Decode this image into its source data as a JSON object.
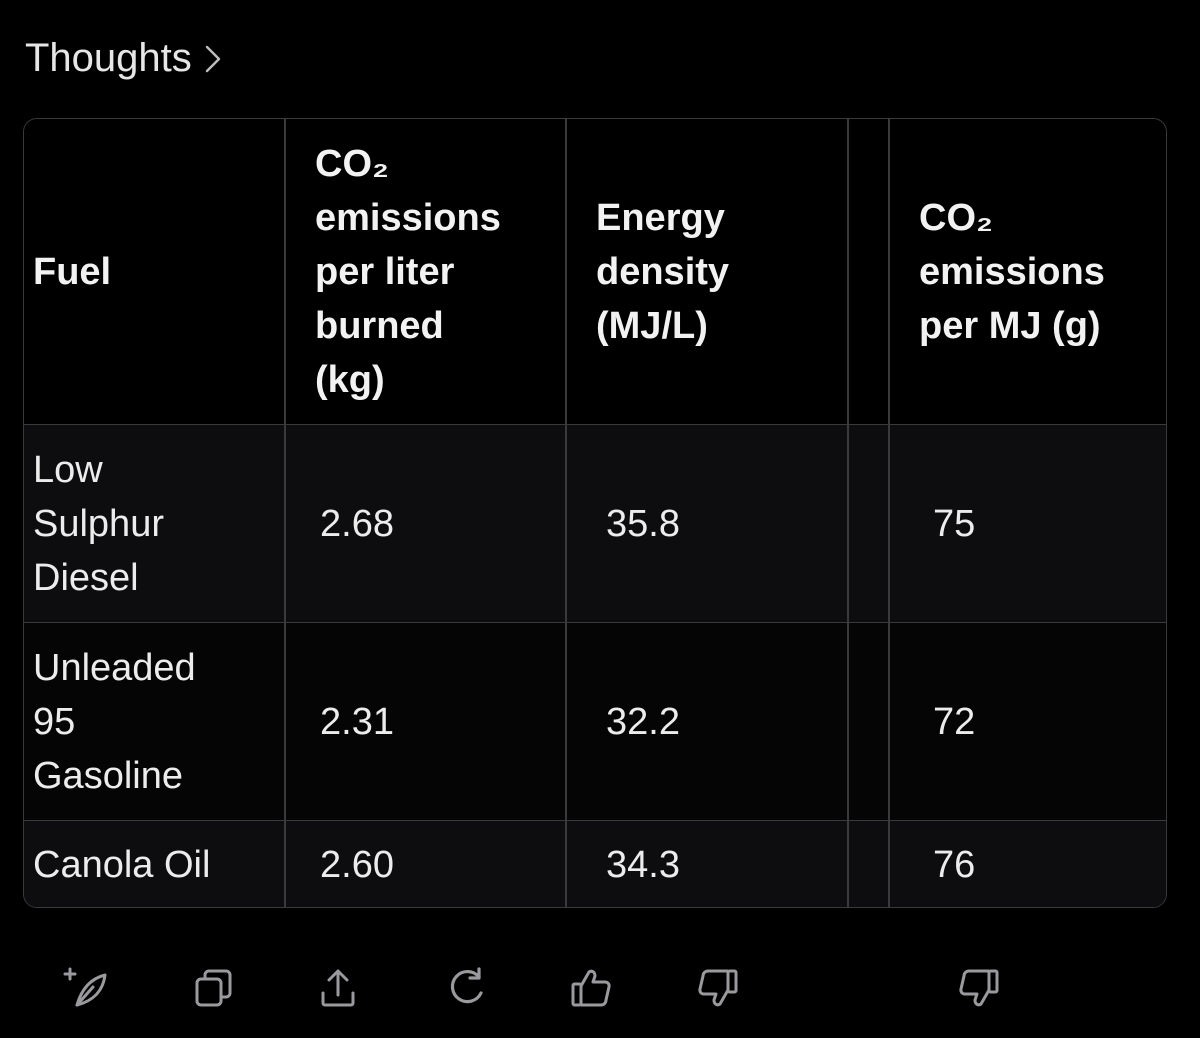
{
  "header": {
    "thoughts_label": "Thoughts"
  },
  "table": {
    "columns": [
      "Fuel",
      "CO₂\nemissions\nper liter\nburned\n(kg)",
      "Energy\ndensity\n(MJ/L)",
      "CO₂\nemissions\nper MJ (g)"
    ],
    "rows": [
      [
        "Low\nSulphur\nDiesel",
        "2.68",
        "35.8",
        "75"
      ],
      [
        "Unleaded\n95\nGasoline",
        "2.31",
        "32.2",
        "72"
      ],
      [
        "Canola Oil",
        "2.60",
        "34.3",
        "76"
      ]
    ]
  },
  "actions": {
    "icons": [
      "edit-sparkle-icon",
      "copy-icon",
      "share-icon",
      "regenerate-icon",
      "thumbs-up-icon",
      "thumbs-down-icon",
      "thumbs-down-icon"
    ]
  },
  "colors": {
    "background": "#000000",
    "border": "#3a3a3c",
    "text": "#ececec",
    "icon": "#9a9a9e"
  }
}
